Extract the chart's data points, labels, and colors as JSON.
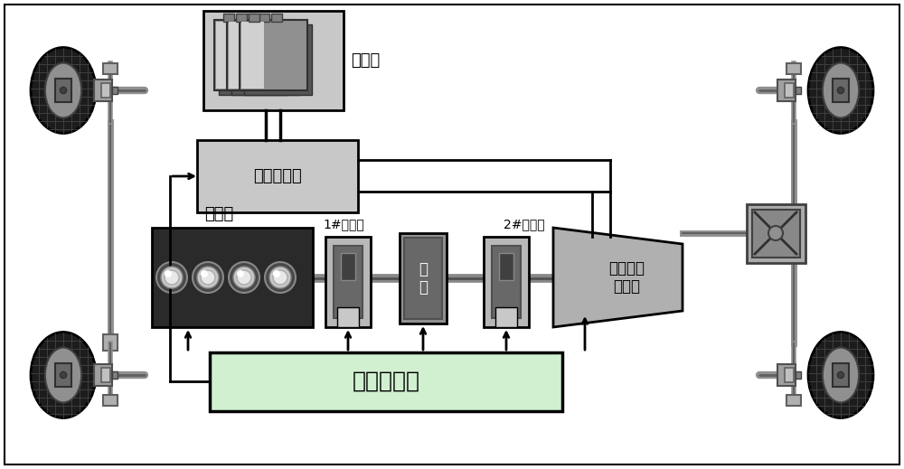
{
  "bg_color": "#ffffff",
  "line_color": "#000000",
  "gray_light": "#c8c8c8",
  "gray_medium": "#a0a0a0",
  "gray_dark": "#505050",
  "green_light": "#d0f0d0",
  "labels": {
    "battery": "电池组",
    "motor_ctrl": "电机控制器",
    "engine": "发动机",
    "clutch1": "1#离合器",
    "clutch2": "2#离合器",
    "motor": "电\n机",
    "transmission": "机械自动\n变速器",
    "vehicle_ctrl": "整车控制器"
  },
  "figsize": [
    10.0,
    5.19
  ],
  "dpi": 100
}
